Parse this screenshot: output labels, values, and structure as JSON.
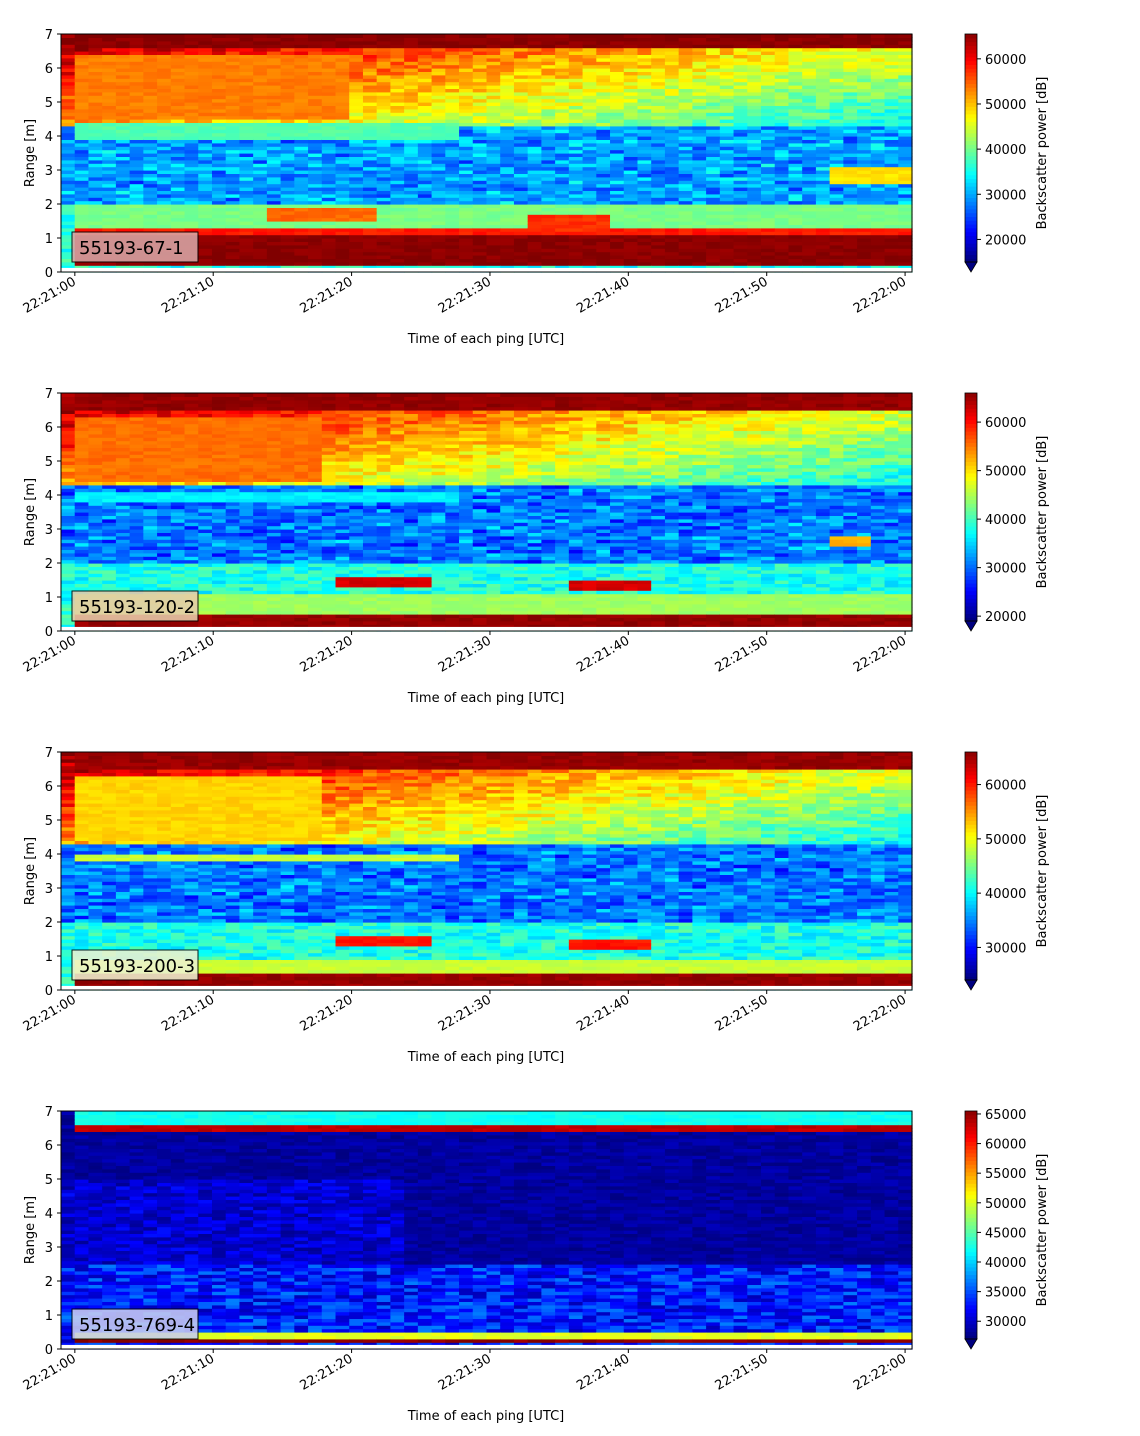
{
  "chart_data": [
    {
      "type": "heatmap",
      "label_box": "55193-67-1",
      "xlabel": "Time of each ping [UTC]",
      "ylabel": "Range [m]",
      "x_ticks": [
        "22:21:00",
        "22:21:10",
        "22:21:20",
        "22:21:30",
        "22:21:40",
        "22:21:50",
        "22:22:00"
      ],
      "x_range": [
        "22:20:59",
        "22:22:00.5"
      ],
      "y_ticks": [
        0,
        1,
        2,
        3,
        4,
        5,
        6,
        7
      ],
      "ylim": [
        0,
        7
      ],
      "colorbar_label": "Backscatter power [dB]",
      "colorbar_ticks": [
        20000,
        30000,
        40000,
        50000,
        60000
      ],
      "colorbar_range": [
        15000,
        65500
      ],
      "colormap": "jet",
      "colorbar_extend": "min",
      "label_box_color": "#d9a6a6",
      "features": [
        {
          "t0": 0,
          "t1": 61,
          "r0": 0.25,
          "r1": 1.1,
          "value": 65000
        },
        {
          "t0": 0,
          "t1": 61,
          "r0": 1.1,
          "r1": 1.3,
          "value": 58000
        },
        {
          "t0": 0,
          "t1": 61,
          "r0": 1.3,
          "r1": 2.0,
          "value": 40000
        },
        {
          "t0": 14,
          "t1": 22,
          "r0": 1.5,
          "r1": 1.9,
          "value": 54000
        },
        {
          "t0": 33,
          "t1": 39,
          "r0": 1.2,
          "r1": 1.7,
          "value": 57000
        },
        {
          "t0": 0,
          "t1": 28,
          "r0": 3.9,
          "r1": 4.4,
          "value": 38000
        },
        {
          "t0": 55,
          "t1": 61,
          "r0": 2.6,
          "r1": 3.1,
          "value": 48000
        },
        {
          "t0": 0,
          "t1": 61,
          "r0": 6.6,
          "r1": 7.0,
          "value": 65000
        },
        {
          "t0": 0,
          "t1": 20,
          "r0": 4.5,
          "r1": 6.4,
          "value": 53000
        }
      ]
    },
    {
      "type": "heatmap",
      "label_box": "55193-120-2",
      "xlabel": "Time of each ping [UTC]",
      "ylabel": "Range [m]",
      "x_ticks": [
        "22:21:00",
        "22:21:10",
        "22:21:20",
        "22:21:30",
        "22:21:40",
        "22:21:50",
        "22:22:00"
      ],
      "x_range": [
        "22:20:59",
        "22:22:00.5"
      ],
      "y_ticks": [
        0,
        1,
        2,
        3,
        4,
        5,
        6,
        7
      ],
      "ylim": [
        0,
        7
      ],
      "colorbar_label": "Backscatter power [dB]",
      "colorbar_ticks": [
        20000,
        30000,
        40000,
        50000,
        60000
      ],
      "colorbar_range": [
        19000,
        66000
      ],
      "colormap": "jet",
      "colorbar_extend": "min",
      "label_box_color": "#e8ccaa",
      "features": [
        {
          "t0": 0,
          "t1": 61,
          "r0": 0.1,
          "r1": 0.5,
          "value": 65000
        },
        {
          "t0": 0,
          "t1": 61,
          "r0": 0.5,
          "r1": 1.1,
          "value": 44000
        },
        {
          "t0": 19,
          "t1": 26,
          "r0": 1.35,
          "r1": 1.6,
          "value": 62000
        },
        {
          "t0": 36,
          "t1": 42,
          "r0": 1.2,
          "r1": 1.5,
          "value": 62000
        },
        {
          "t0": 0,
          "t1": 28,
          "r0": 3.8,
          "r1": 4.1,
          "value": 36000
        },
        {
          "t0": 55,
          "t1": 58,
          "r0": 2.5,
          "r1": 2.8,
          "value": 52000
        },
        {
          "t0": 0,
          "t1": 61,
          "r0": 6.5,
          "r1": 7.0,
          "value": 65000
        },
        {
          "t0": 0,
          "t1": 18,
          "r0": 4.4,
          "r1": 6.3,
          "value": 55000
        }
      ]
    },
    {
      "type": "heatmap",
      "label_box": "55193-200-3",
      "xlabel": "Time of each ping [UTC]",
      "ylabel": "Range [m]",
      "x_ticks": [
        "22:21:00",
        "22:21:10",
        "22:21:20",
        "22:21:30",
        "22:21:40",
        "22:21:50",
        "22:22:00"
      ],
      "x_range": [
        "22:20:59",
        "22:22:00.5"
      ],
      "y_ticks": [
        0,
        1,
        2,
        3,
        4,
        5,
        6,
        7
      ],
      "ylim": [
        0,
        7
      ],
      "colorbar_label": "Backscatter power [dB]",
      "colorbar_ticks": [
        30000,
        40000,
        50000,
        60000
      ],
      "colorbar_range": [
        24000,
        66000
      ],
      "colormap": "jet",
      "colorbar_extend": "min",
      "label_box_color": "#eef2d0",
      "features": [
        {
          "t0": 0,
          "t1": 61,
          "r0": 0.1,
          "r1": 0.5,
          "value": 65000
        },
        {
          "t0": 0,
          "t1": 61,
          "r0": 0.5,
          "r1": 0.9,
          "value": 48000
        },
        {
          "t0": 19,
          "t1": 26,
          "r0": 1.35,
          "r1": 1.6,
          "value": 60000
        },
        {
          "t0": 36,
          "t1": 42,
          "r0": 1.2,
          "r1": 1.5,
          "value": 60000
        },
        {
          "t0": 0,
          "t1": 28,
          "r0": 3.8,
          "r1": 4.0,
          "value": 48000
        },
        {
          "t0": 0,
          "t1": 61,
          "r0": 6.5,
          "r1": 7.0,
          "value": 65000
        },
        {
          "t0": 0,
          "t1": 18,
          "r0": 4.4,
          "r1": 6.3,
          "value": 52000
        }
      ]
    },
    {
      "type": "heatmap",
      "label_box": "55193-769-4",
      "xlabel": "Time of each ping [UTC]",
      "ylabel": "Range [m]",
      "x_ticks": [
        "22:21:00",
        "22:21:10",
        "22:21:20",
        "22:21:30",
        "22:21:40",
        "22:21:50",
        "22:22:00"
      ],
      "x_range": [
        "22:20:59",
        "22:22:00.5"
      ],
      "y_ticks": [
        0,
        1,
        2,
        3,
        4,
        5,
        6,
        7
      ],
      "ylim": [
        0,
        7
      ],
      "colorbar_label": "Backscatter power [dB]",
      "colorbar_ticks": [
        30000,
        35000,
        40000,
        45000,
        50000,
        55000,
        60000,
        65000
      ],
      "colorbar_range": [
        27000,
        65500
      ],
      "colormap": "jet",
      "colorbar_extend": "min",
      "label_box_color": "#c8ccf2",
      "features": [
        {
          "t0": 0,
          "t1": 61,
          "r0": 0.2,
          "r1": 0.3,
          "value": 65000
        },
        {
          "t0": 0,
          "t1": 61,
          "r0": 0.3,
          "r1": 0.45,
          "value": 50000
        },
        {
          "t0": 0,
          "t1": 61,
          "r0": 6.4,
          "r1": 6.6,
          "value": 63000
        },
        {
          "t0": 0,
          "t1": 61,
          "r0": 6.6,
          "r1": 7.0,
          "value": 42000
        }
      ]
    }
  ]
}
